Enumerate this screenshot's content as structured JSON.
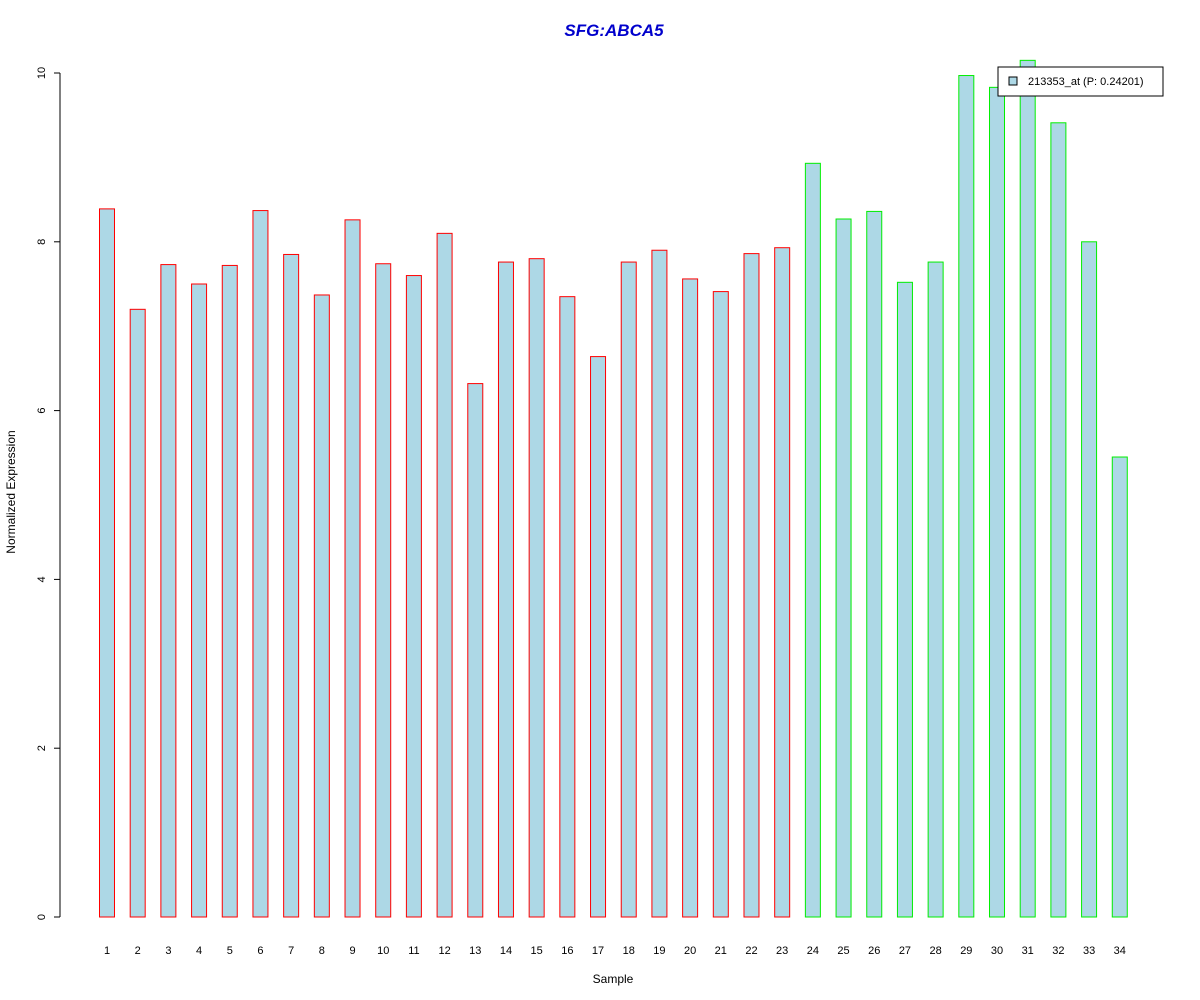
{
  "chart_data": {
    "type": "bar",
    "title": "SFG:ABCA5",
    "title_color": "#0000cc",
    "xlabel": "Sample",
    "ylabel": "Normalized Expression",
    "ylim": [
      0,
      10
    ],
    "yticks": [
      0,
      2,
      4,
      6,
      8,
      10
    ],
    "grid": false,
    "legend_position": "top-right",
    "categories": [
      "1",
      "2",
      "3",
      "4",
      "5",
      "6",
      "7",
      "8",
      "9",
      "10",
      "11",
      "12",
      "13",
      "14",
      "15",
      "16",
      "17",
      "18",
      "19",
      "20",
      "21",
      "22",
      "23",
      "24",
      "25",
      "26",
      "27",
      "28",
      "29",
      "30",
      "31",
      "32",
      "33",
      "34"
    ],
    "series": [
      {
        "name": "213353_at (P: 0.24201)",
        "fill": "#add8e6",
        "values": [
          8.39,
          7.2,
          7.73,
          7.5,
          7.72,
          8.37,
          7.85,
          7.37,
          8.26,
          7.74,
          7.6,
          8.1,
          6.32,
          7.76,
          7.8,
          7.35,
          6.64,
          7.76,
          7.9,
          7.56,
          7.41,
          7.86,
          7.93,
          8.93,
          8.27,
          8.36,
          7.52,
          7.76,
          9.97,
          9.83,
          10.15,
          9.41,
          8.0,
          5.45
        ],
        "border_colors": [
          "#ff0000",
          "#ff0000",
          "#ff0000",
          "#ff0000",
          "#ff0000",
          "#ff0000",
          "#ff0000",
          "#ff0000",
          "#ff0000",
          "#ff0000",
          "#ff0000",
          "#ff0000",
          "#ff0000",
          "#ff0000",
          "#ff0000",
          "#ff0000",
          "#ff0000",
          "#ff0000",
          "#ff0000",
          "#ff0000",
          "#ff0000",
          "#ff0000",
          "#ff0000",
          "#00ee00",
          "#00ee00",
          "#00ee00",
          "#00ee00",
          "#00ee00",
          "#00ee00",
          "#00ee00",
          "#00ee00",
          "#00ee00",
          "#00ee00",
          "#00ee00"
        ]
      }
    ]
  }
}
